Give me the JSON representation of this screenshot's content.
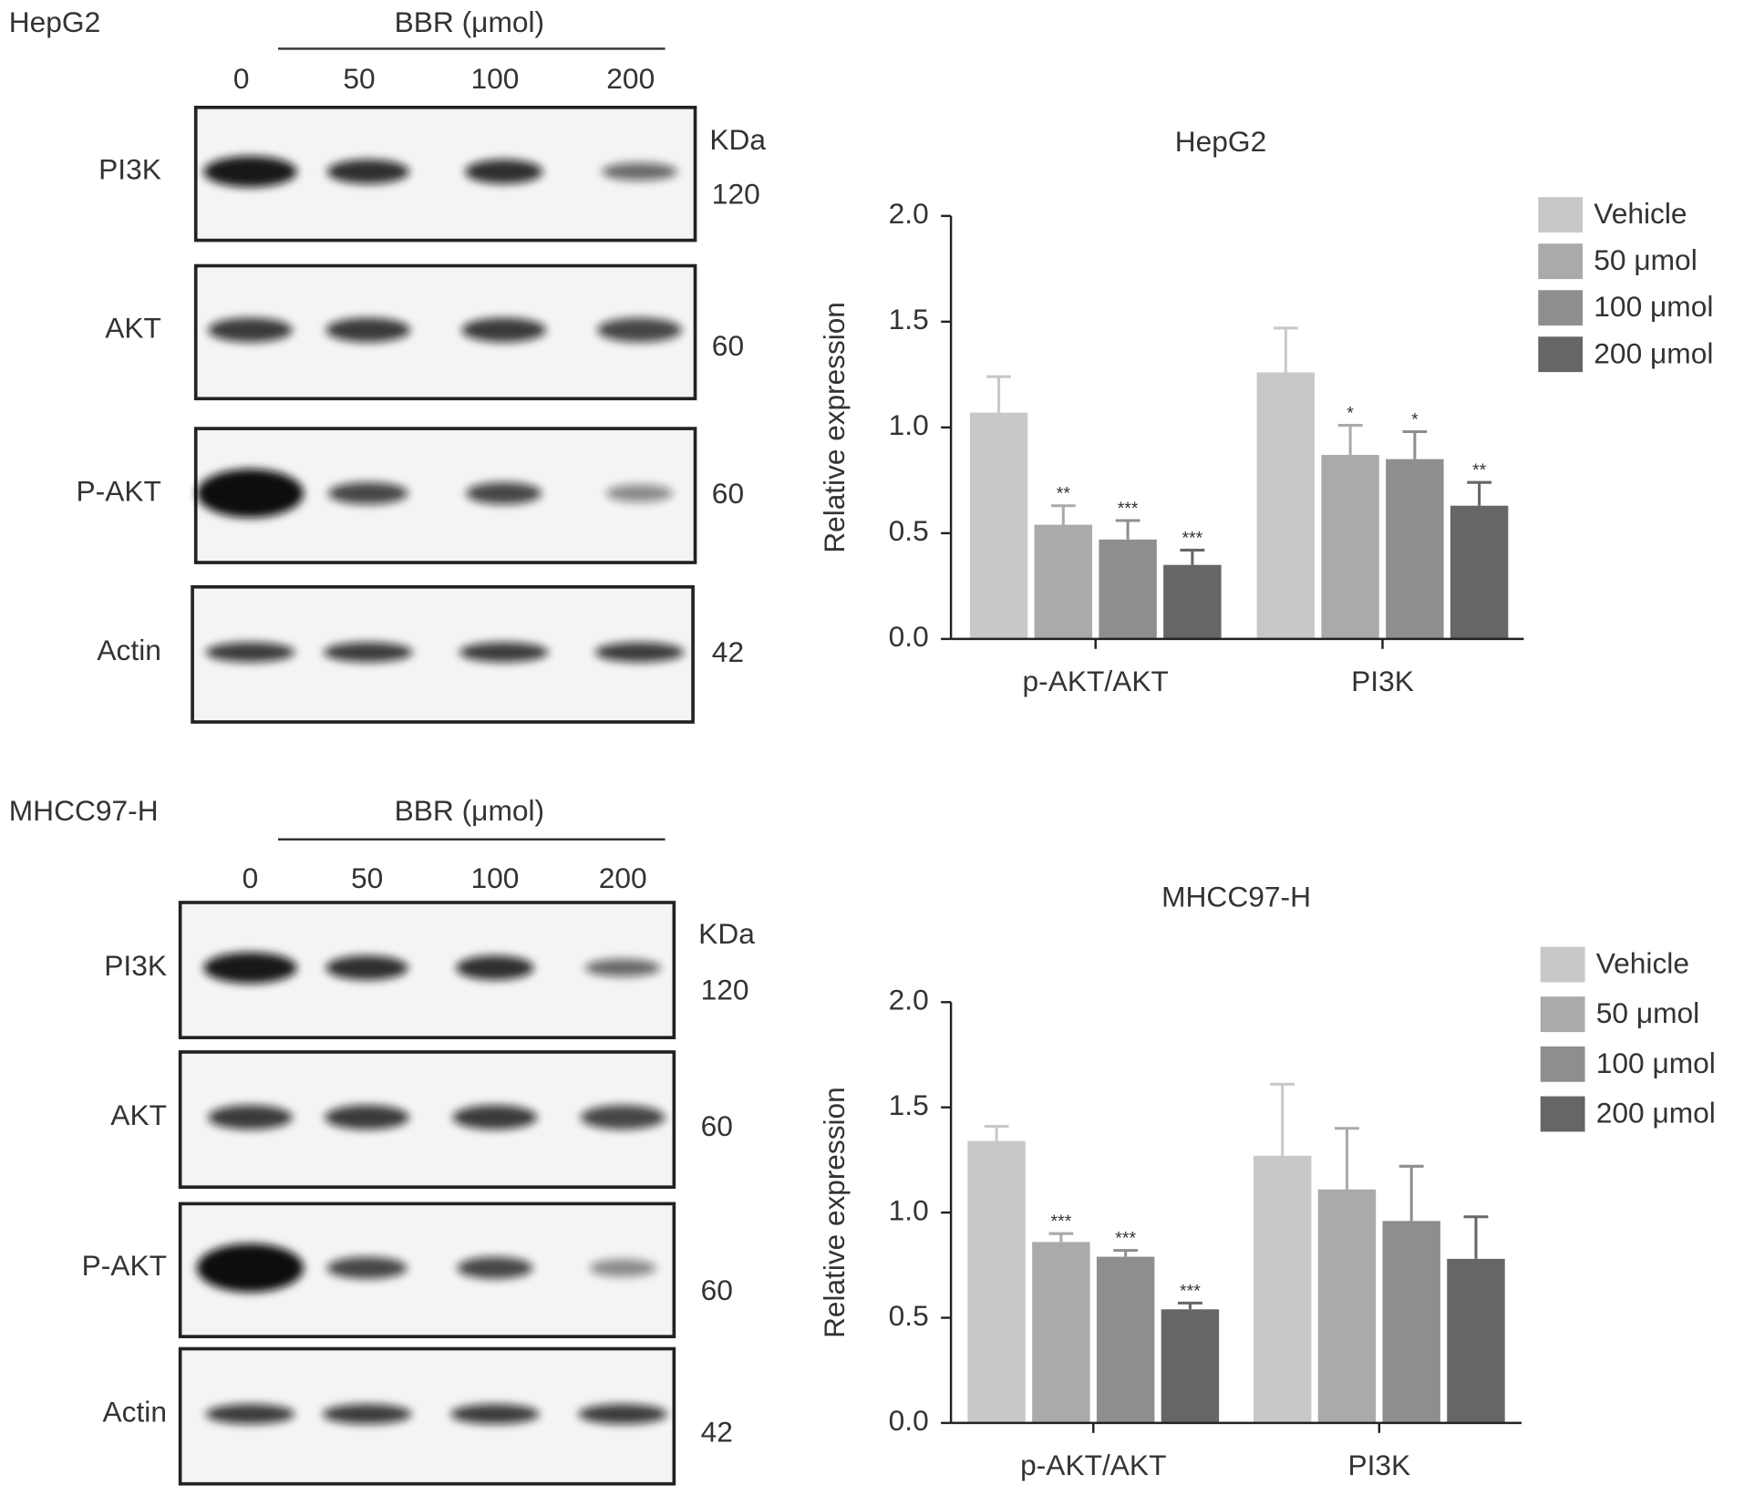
{
  "blots": [
    {
      "cell_line": "HepG2",
      "treatment": "BBR (μmol)",
      "doses": [
        "0",
        "50",
        "100",
        "200"
      ],
      "kda_label": "KDa",
      "rows": [
        {
          "label": "PI3K",
          "kda": "120"
        },
        {
          "label": "AKT",
          "kda": "60"
        },
        {
          "label": "P-AKT",
          "kda": "60"
        },
        {
          "label": "Actin",
          "kda": "42"
        }
      ]
    },
    {
      "cell_line": "MHCC97-H",
      "treatment": "BBR (μmol)",
      "doses": [
        "0",
        "50",
        "100",
        "200"
      ],
      "kda_label": "KDa",
      "rows": [
        {
          "label": "PI3K",
          "kda": "120"
        },
        {
          "label": "AKT",
          "kda": "60"
        },
        {
          "label": "P-AKT",
          "kda": "60"
        },
        {
          "label": "Actin",
          "kda": "42"
        }
      ]
    }
  ],
  "chart_data": [
    {
      "type": "bar",
      "title": "HepG2",
      "y_label": "Relative expression",
      "categories": [
        "p-AKT/AKT",
        "PI3K"
      ],
      "ylim": [
        0,
        2
      ],
      "yticks": [
        {
          "value": 0,
          "label": "0.0"
        },
        {
          "value": 0.5,
          "label": "0.5"
        },
        {
          "value": 1,
          "label": "1.0"
        },
        {
          "value": 1.5,
          "label": "1.5"
        },
        {
          "value": 2,
          "label": "2.0"
        }
      ],
      "legend": "right",
      "series": [
        {
          "name": "Vehicle",
          "color": "#c8c8c8",
          "values": [
            1.07,
            1.26
          ],
          "errors": [
            0.17,
            0.21
          ],
          "significance": [
            null,
            null
          ]
        },
        {
          "name": "50 μmol",
          "color": "#aaaaaa",
          "values": [
            0.54,
            0.87
          ],
          "errors": [
            0.09,
            0.14
          ],
          "significance": [
            "**",
            "*"
          ]
        },
        {
          "name": "100 μmol",
          "color": "#8e8e8e",
          "values": [
            0.47,
            0.85
          ],
          "errors": [
            0.09,
            0.13
          ],
          "significance": [
            "***",
            "*"
          ]
        },
        {
          "name": "200 μmol",
          "color": "#666666",
          "values": [
            0.35,
            0.63
          ],
          "errors": [
            0.07,
            0.11
          ],
          "significance": [
            "***",
            "**"
          ]
        }
      ]
    },
    {
      "type": "bar",
      "title": "MHCC97-H",
      "y_label": "Relative expression",
      "categories": [
        "p-AKT/AKT",
        "PI3K"
      ],
      "ylim": [
        0,
        2
      ],
      "yticks": [
        {
          "value": 0,
          "label": "0.0"
        },
        {
          "value": 0.5,
          "label": "0.5"
        },
        {
          "value": 1,
          "label": "1.0"
        },
        {
          "value": 1.5,
          "label": "1.5"
        },
        {
          "value": 2,
          "label": "2.0"
        }
      ],
      "legend": "right",
      "series": [
        {
          "name": "Vehicle",
          "color": "#c8c8c8",
          "values": [
            1.34,
            1.27
          ],
          "errors": [
            0.07,
            0.34
          ],
          "significance": [
            null,
            null
          ]
        },
        {
          "name": "50 μmol",
          "color": "#aaaaaa",
          "values": [
            0.86,
            1.11
          ],
          "errors": [
            0.04,
            0.29
          ],
          "significance": [
            "***",
            null
          ]
        },
        {
          "name": "100 μmol",
          "color": "#8e8e8e",
          "values": [
            0.79,
            0.96
          ],
          "errors": [
            0.03,
            0.26
          ],
          "significance": [
            "***",
            null
          ]
        },
        {
          "name": "200 μmol",
          "color": "#666666",
          "values": [
            0.54,
            0.78
          ],
          "errors": [
            0.03,
            0.2
          ],
          "significance": [
            "***",
            null
          ]
        }
      ]
    }
  ]
}
